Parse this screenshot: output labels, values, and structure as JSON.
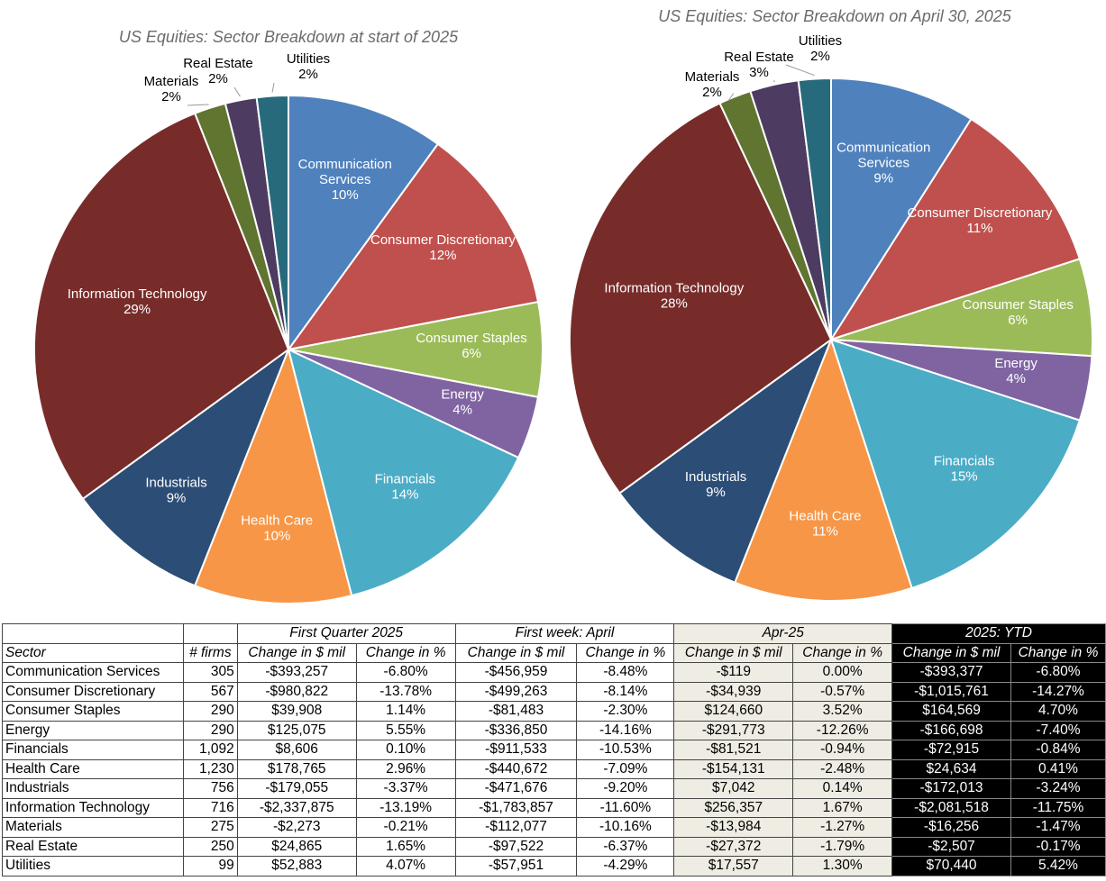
{
  "chart_data": [
    {
      "type": "pie",
      "title": "US Equities: Sector Breakdown at start of 2025",
      "categories": [
        "Communication Services",
        "Consumer Discretionary",
        "Consumer Staples",
        "Energy",
        "Financials",
        "Health Care",
        "Industrials",
        "Information Technology",
        "Materials",
        "Real Estate",
        "Utilities"
      ],
      "values": [
        10,
        12,
        6,
        4,
        14,
        10,
        9,
        29,
        2,
        2,
        2
      ],
      "labels": [
        "10%",
        "12%",
        "6%",
        "4%",
        "14%",
        "10%",
        "9%",
        "29%",
        "2%",
        "2%",
        "2%"
      ]
    },
    {
      "type": "pie",
      "title": "US Equities: Sector Breakdown on April 30, 2025",
      "categories": [
        "Communication Services",
        "Consumer Discretionary",
        "Consumer Staples",
        "Energy",
        "Financials",
        "Health Care",
        "Industrials",
        "Information Technology",
        "Materials",
        "Real Estate",
        "Utilities"
      ],
      "values": [
        9,
        11,
        6,
        4,
        15,
        11,
        9,
        28,
        2,
        3,
        2
      ],
      "labels": [
        "9%",
        "11%",
        "6%",
        "4%",
        "15%",
        "11%",
        "9%",
        "28%",
        "2%",
        "3%",
        "2%"
      ]
    }
  ],
  "colors": [
    "#4F81BD",
    "#C0504D",
    "#9BBB59",
    "#8064A2",
    "#4BACC6",
    "#F79646",
    "#2C4D75",
    "#772C2A",
    "#5F7530",
    "#4D3B62",
    "#276A7C"
  ],
  "table": {
    "groups": [
      "First Quarter 2025",
      "First week: April",
      "Apr-25",
      "2025: YTD"
    ],
    "headers": [
      "Sector",
      "# firms",
      "Change in $ mil",
      "Change in %",
      "Change in $ mil",
      "Change in %",
      "Change in $ mil",
      "Change in %",
      "Change in $ mil",
      "Change in %"
    ],
    "rows": [
      [
        "Communication Services",
        "305",
        "-$393,257",
        "-6.80%",
        "-$456,959",
        "-8.48%",
        "-$119",
        "0.00%",
        "-$393,377",
        "-6.80%"
      ],
      [
        "Consumer Discretionary",
        "567",
        "-$980,822",
        "-13.78%",
        "-$499,263",
        "-8.14%",
        "-$34,939",
        "-0.57%",
        "-$1,015,761",
        "-14.27%"
      ],
      [
        "Consumer Staples",
        "290",
        "$39,908",
        "1.14%",
        "-$81,483",
        "-2.30%",
        "$124,660",
        "3.52%",
        "$164,569",
        "4.70%"
      ],
      [
        "Energy",
        "290",
        "$125,075",
        "5.55%",
        "-$336,850",
        "-14.16%",
        "-$291,773",
        "-12.26%",
        "-$166,698",
        "-7.40%"
      ],
      [
        "Financials",
        "1,092",
        "$8,606",
        "0.10%",
        "-$911,533",
        "-10.53%",
        "-$81,521",
        "-0.94%",
        "-$72,915",
        "-0.84%"
      ],
      [
        "Health Care",
        "1,230",
        "$178,765",
        "2.96%",
        "-$440,672",
        "-7.09%",
        "-$154,131",
        "-2.48%",
        "$24,634",
        "0.41%"
      ],
      [
        "Industrials",
        "756",
        "-$179,055",
        "-3.37%",
        "-$471,676",
        "-9.20%",
        "$7,042",
        "0.14%",
        "-$172,013",
        "-3.24%"
      ],
      [
        "Information Technology",
        "716",
        "-$2,337,875",
        "-13.19%",
        "-$1,783,857",
        "-11.60%",
        "$256,357",
        "1.67%",
        "-$2,081,518",
        "-11.75%"
      ],
      [
        "Materials",
        "275",
        "-$2,273",
        "-0.21%",
        "-$112,077",
        "-10.16%",
        "-$13,984",
        "-1.27%",
        "-$16,256",
        "-1.47%"
      ],
      [
        "Real Estate",
        "250",
        "$24,865",
        "1.65%",
        "-$97,522",
        "-6.37%",
        "-$27,372",
        "-1.79%",
        "-$2,507",
        "-0.17%"
      ],
      [
        "Utilities",
        "99",
        "$52,883",
        "4.07%",
        "-$57,951",
        "-4.29%",
        "$17,557",
        "1.30%",
        "$70,440",
        "5.42%"
      ]
    ]
  }
}
